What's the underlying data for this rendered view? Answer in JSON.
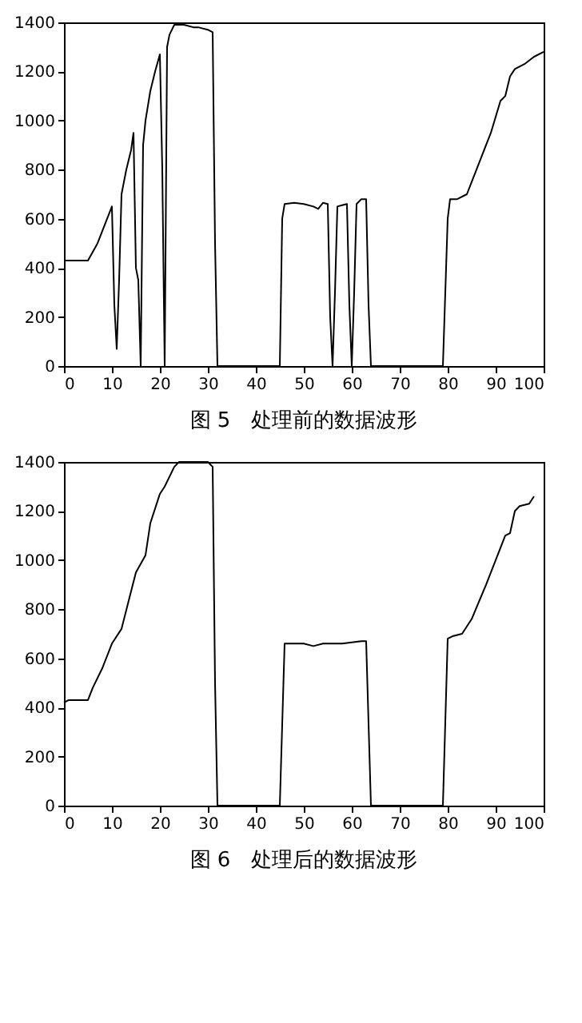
{
  "chart_data": [
    {
      "type": "line",
      "title": "图 5　处理前的数据波形",
      "xlim": [
        0,
        100
      ],
      "ylim": [
        0,
        1400
      ],
      "xticks": [
        0,
        10,
        20,
        30,
        40,
        50,
        60,
        70,
        80,
        90,
        100
      ],
      "yticks": [
        0,
        200,
        400,
        600,
        800,
        1000,
        1200,
        1400
      ],
      "grid": false,
      "marker": "none",
      "line_style": "solid",
      "series": [
        {
          "color": "#000000",
          "x": [
            0,
            5,
            7,
            9,
            10,
            10.5,
            11,
            11.5,
            12,
            13,
            14,
            14.5,
            15,
            15.5,
            16,
            16.5,
            17,
            18,
            19,
            20,
            20.5,
            21,
            21.5,
            22,
            23,
            25,
            27,
            28,
            30,
            31,
            31.5,
            32,
            45,
            45.5,
            46,
            48,
            50,
            52,
            53,
            54,
            55,
            55.5,
            56,
            56.5,
            57,
            58,
            59,
            59.5,
            60,
            60.5,
            61,
            62,
            63,
            63.5,
            64,
            79,
            80,
            80.5,
            82,
            84,
            85,
            87,
            89,
            91,
            92,
            93,
            94,
            96,
            98,
            100
          ],
          "values": [
            430,
            430,
            500,
            600,
            650,
            250,
            70,
            350,
            700,
            800,
            880,
            950,
            400,
            350,
            0,
            900,
            1000,
            1120,
            1200,
            1270,
            800,
            0,
            1300,
            1350,
            1390,
            1390,
            1380,
            1380,
            1370,
            1360,
            500,
            0,
            0,
            600,
            660,
            665,
            660,
            650,
            640,
            665,
            660,
            200,
            0,
            300,
            650,
            655,
            660,
            250,
            0,
            300,
            660,
            680,
            680,
            250,
            0,
            0,
            600,
            680,
            680,
            700,
            750,
            850,
            950,
            1080,
            1100,
            1180,
            1210,
            1230,
            1260,
            1280
          ]
        }
      ]
    },
    {
      "type": "line",
      "title": "图 6　处理后的数据波形",
      "xlim": [
        0,
        100
      ],
      "ylim": [
        0,
        1400
      ],
      "xticks": [
        0,
        10,
        20,
        30,
        40,
        50,
        60,
        70,
        80,
        90,
        100
      ],
      "yticks": [
        0,
        200,
        400,
        600,
        800,
        1000,
        1200,
        1400
      ],
      "grid": false,
      "marker": "none",
      "line_style": "solid",
      "series": [
        {
          "color": "#000000",
          "x": [
            0,
            1,
            5,
            6,
            8,
            10,
            12,
            15,
            17,
            18,
            20,
            21,
            23,
            24,
            30,
            31,
            31.5,
            32,
            45,
            46,
            50,
            52,
            54,
            58,
            62,
            63,
            64,
            79,
            80,
            81,
            83,
            85,
            88,
            90,
            92,
            93,
            94,
            95,
            97,
            98
          ],
          "values": [
            420,
            430,
            430,
            480,
            560,
            660,
            720,
            950,
            1020,
            1150,
            1270,
            1300,
            1380,
            1400,
            1400,
            1380,
            500,
            0,
            0,
            660,
            660,
            650,
            660,
            660,
            670,
            670,
            0,
            0,
            680,
            690,
            700,
            760,
            900,
            1000,
            1100,
            1110,
            1200,
            1220,
            1230,
            1260
          ]
        }
      ]
    }
  ]
}
